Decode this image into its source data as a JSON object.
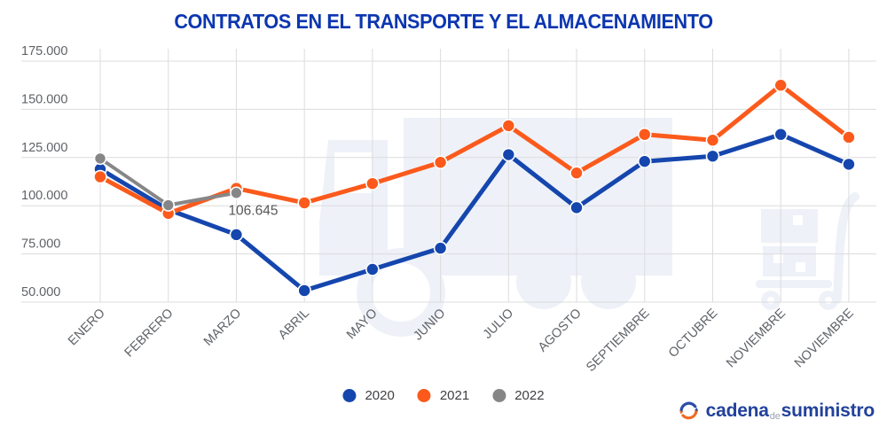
{
  "title": "CONTRATOS EN EL TRANSPORTE Y EL ALMACENAMIENTO",
  "colors": {
    "blue_2020": "#1546ae",
    "orange_2021": "#fb5a1c",
    "gray_2022": "#868686",
    "grid": "#dcdcdc",
    "tick_text": "#5f6368",
    "title_text": "#0c36b0",
    "watermark": "#eef1f8"
  },
  "legend": [
    {
      "name": "2020",
      "color": "#1546ae"
    },
    {
      "name": "2021",
      "color": "#fb5a1c"
    },
    {
      "name": "2022",
      "color": "#868686"
    }
  ],
  "logo": {
    "word1": "cadena",
    "word2": "de",
    "word3": "suministro"
  },
  "chart_data": {
    "type": "line",
    "title": "CONTRATOS EN EL TRANSPORTE Y EL ALMACENAMIENTO",
    "categories": [
      "ENERO",
      "FEBRERO",
      "MARZO",
      "ABRIL",
      "MAYO",
      "JUNIO",
      "JULIO",
      "AGOSTO",
      "SEPTIEMBRE",
      "OCTUBRE",
      "NOVIEMBRE",
      "NOVIEMBRE"
    ],
    "series": [
      {
        "name": "2020",
        "color": "#1546ae",
        "line_width": 5,
        "values": [
          119000,
          98000,
          85000,
          56000,
          67000,
          78000,
          126500,
          99000,
          123000,
          125700,
          137000,
          121500
        ]
      },
      {
        "name": "2021",
        "color": "#fb5a1c",
        "line_width": 5,
        "values": [
          115000,
          96000,
          109000,
          101500,
          111500,
          122500,
          141500,
          117000,
          137000,
          134000,
          162500,
          135500
        ]
      },
      {
        "name": "2022",
        "color": "#868686",
        "line_width": 4,
        "values": [
          124500,
          100300,
          106645,
          null,
          null,
          null,
          null,
          null,
          null,
          null,
          null,
          null
        ]
      }
    ],
    "ylim": [
      50000,
      175000
    ],
    "ytick_step": 25000,
    "ytick_labels": [
      "175.000",
      "150.000",
      "125.000",
      "100.000",
      "75.000",
      "50.000"
    ],
    "xlabel": "",
    "ylabel": "",
    "grid": true,
    "legend_position": "bottom",
    "annotation": {
      "text": "106.645",
      "series": "2022",
      "category_index": 2,
      "dx": -9,
      "dy": 25
    }
  }
}
